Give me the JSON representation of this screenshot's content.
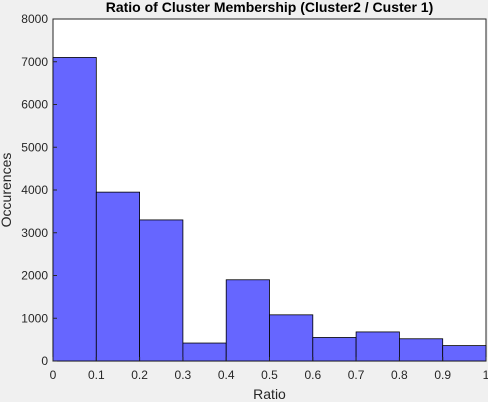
{
  "chart_data": {
    "type": "bar",
    "title": "Ratio of Cluster Membership (Cluster2 / Custer 1)",
    "xlabel": "Ratio",
    "ylabel": "Occurences",
    "xlim": [
      0,
      1
    ],
    "ylim": [
      0,
      8000
    ],
    "x_ticks": [
      "0",
      "0.1",
      "0.2",
      "0.3",
      "0.4",
      "0.5",
      "0.6",
      "0.7",
      "0.8",
      "0.9",
      "1"
    ],
    "y_ticks": [
      "0",
      "1000",
      "2000",
      "3000",
      "4000",
      "5000",
      "6000",
      "7000",
      "8000"
    ],
    "bin_edges": [
      0,
      0.1,
      0.2,
      0.3,
      0.4,
      0.5,
      0.6,
      0.7,
      0.8,
      0.9,
      1.0
    ],
    "values": [
      7100,
      3950,
      3300,
      420,
      1900,
      1080,
      550,
      680,
      520,
      360
    ],
    "grid": false,
    "colors": {
      "bar_fill": "#6666ff",
      "bar_edge": "#000000",
      "axes_bg": "#ffffff",
      "figure_bg": "#f0f0f0"
    }
  }
}
